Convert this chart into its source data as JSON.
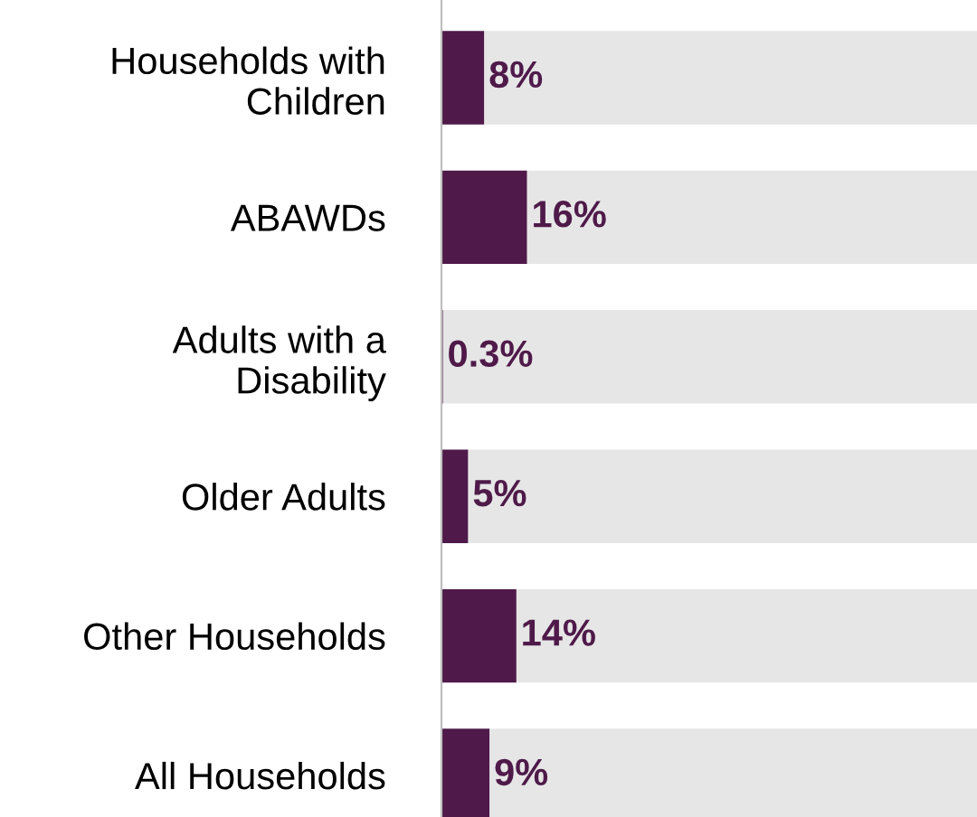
{
  "chart_data": {
    "type": "bar",
    "orientation": "horizontal",
    "stacked": true,
    "xlim": [
      0,
      100
    ],
    "categories": [
      "Households with\nChildren",
      "ABAWDs",
      "Adults with a\nDisability",
      "Older Adults",
      "Other Households",
      "All Households"
    ],
    "series": [
      {
        "color": "#4f1a4a",
        "values": [
          8,
          16,
          0.3,
          5,
          14,
          9
        ],
        "value_labels": [
          "8%",
          "16%",
          "0.3%",
          "5%",
          "14%",
          "9%"
        ]
      },
      {
        "color": "#e6e6e6",
        "values": [
          92,
          84,
          99.7,
          95,
          86,
          91
        ]
      }
    ]
  }
}
